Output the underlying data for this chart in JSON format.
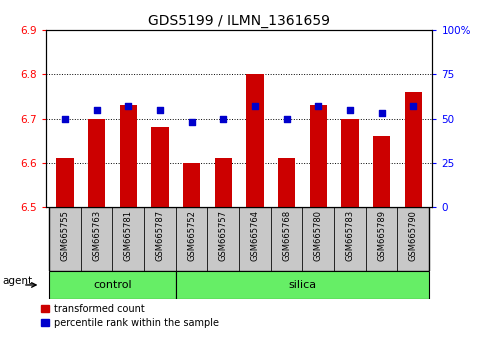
{
  "title": "GDS5199 / ILMN_1361659",
  "samples": [
    "GSM665755",
    "GSM665763",
    "GSM665781",
    "GSM665787",
    "GSM665752",
    "GSM665757",
    "GSM665764",
    "GSM665768",
    "GSM665780",
    "GSM665783",
    "GSM665789",
    "GSM665790"
  ],
  "red_values": [
    6.61,
    6.7,
    6.73,
    6.68,
    6.6,
    6.61,
    6.8,
    6.61,
    6.73,
    6.7,
    6.66,
    6.76
  ],
  "blue_values": [
    50,
    55,
    57,
    55,
    48,
    50,
    57,
    50,
    57,
    55,
    53,
    57
  ],
  "ylim_left": [
    6.5,
    6.9
  ],
  "ylim_right": [
    0,
    100
  ],
  "yticks_left": [
    6.5,
    6.6,
    6.7,
    6.8,
    6.9
  ],
  "yticks_right": [
    0,
    25,
    50,
    75,
    100
  ],
  "ytick_labels_right": [
    "0",
    "25",
    "50",
    "75",
    "100%"
  ],
  "bar_color": "#cc0000",
  "dot_color": "#0000cc",
  "bar_base": 6.5,
  "n_control": 4,
  "n_silica": 8,
  "control_label": "control",
  "silica_label": "silica",
  "agent_label": "agent",
  "green_color": "#66ee66",
  "gray_color": "#c8c8c8",
  "legend_red_label": "transformed count",
  "legend_blue_label": "percentile rank within the sample",
  "title_fontsize": 10,
  "tick_fontsize": 7.5,
  "sample_fontsize": 6,
  "group_fontsize": 8,
  "legend_fontsize": 7
}
